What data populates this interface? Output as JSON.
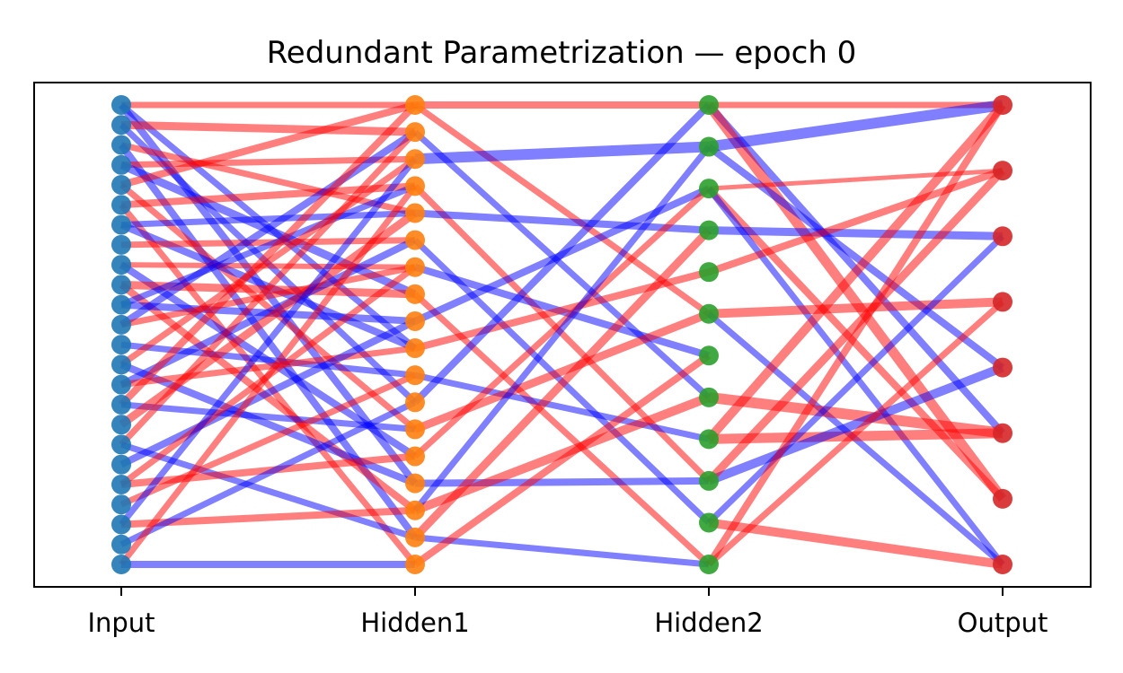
{
  "title": "Redundant Parametrization — epoch 0",
  "layers": [
    {
      "label": "Input",
      "nodes": 24,
      "color": "#1f77b4"
    },
    {
      "label": "Hidden1",
      "nodes": 18,
      "color": "#ff7f0e"
    },
    {
      "label": "Hidden2",
      "nodes": 12,
      "color": "#2ca02c"
    },
    {
      "label": "Output",
      "nodes": 8,
      "color": "#d62728"
    }
  ],
  "weight_colors": {
    "positive": "#ff0000",
    "negative": "#0000ff"
  },
  "edges": [
    {
      "from": [
        0,
        0
      ],
      "to": [
        1,
        0
      ],
      "sign": "pos",
      "w": 0.5
    },
    {
      "from": [
        0,
        0
      ],
      "to": [
        1,
        9
      ],
      "sign": "neg",
      "w": 0.5
    },
    {
      "from": [
        0,
        0
      ],
      "to": [
        1,
        14
      ],
      "sign": "neg",
      "w": 0.6
    },
    {
      "from": [
        0,
        1
      ],
      "to": [
        1,
        1
      ],
      "sign": "pos",
      "w": 0.7
    },
    {
      "from": [
        0,
        1
      ],
      "to": [
        1,
        11
      ],
      "sign": "neg",
      "w": 0.5
    },
    {
      "from": [
        0,
        2
      ],
      "to": [
        1,
        4
      ],
      "sign": "pos",
      "w": 0.5
    },
    {
      "from": [
        0,
        2
      ],
      "to": [
        1,
        16
      ],
      "sign": "neg",
      "w": 0.6
    },
    {
      "from": [
        0,
        3
      ],
      "to": [
        1,
        2
      ],
      "sign": "pos",
      "w": 0.5
    },
    {
      "from": [
        0,
        3
      ],
      "to": [
        1,
        7
      ],
      "sign": "neg",
      "w": 0.7
    },
    {
      "from": [
        0,
        4
      ],
      "to": [
        1,
        0
      ],
      "sign": "pos",
      "w": 0.6
    },
    {
      "from": [
        0,
        4
      ],
      "to": [
        1,
        12
      ],
      "sign": "pos",
      "w": 0.5
    },
    {
      "from": [
        0,
        5
      ],
      "to": [
        1,
        3
      ],
      "sign": "pos",
      "w": 0.6
    },
    {
      "from": [
        0,
        5
      ],
      "to": [
        1,
        17
      ],
      "sign": "pos",
      "w": 0.5
    },
    {
      "from": [
        0,
        6
      ],
      "to": [
        1,
        4
      ],
      "sign": "neg",
      "w": 0.5
    },
    {
      "from": [
        0,
        6
      ],
      "to": [
        1,
        9
      ],
      "sign": "neg",
      "w": 0.6
    },
    {
      "from": [
        0,
        7
      ],
      "to": [
        1,
        5
      ],
      "sign": "pos",
      "w": 0.5
    },
    {
      "from": [
        0,
        8
      ],
      "to": [
        1,
        6
      ],
      "sign": "pos",
      "w": 0.4
    },
    {
      "from": [
        0,
        8
      ],
      "to": [
        1,
        13
      ],
      "sign": "neg",
      "w": 0.6
    },
    {
      "from": [
        0,
        9
      ],
      "to": [
        1,
        7
      ],
      "sign": "pos",
      "w": 0.7
    },
    {
      "from": [
        0,
        9
      ],
      "to": [
        1,
        15
      ],
      "sign": "pos",
      "w": 0.6
    },
    {
      "from": [
        0,
        10
      ],
      "to": [
        1,
        3
      ],
      "sign": "neg",
      "w": 0.5
    },
    {
      "from": [
        0,
        10
      ],
      "to": [
        1,
        8
      ],
      "sign": "neg",
      "w": 0.6
    },
    {
      "from": [
        0,
        11
      ],
      "to": [
        1,
        1
      ],
      "sign": "neg",
      "w": 0.6
    },
    {
      "from": [
        0,
        11
      ],
      "to": [
        1,
        6
      ],
      "sign": "pos",
      "w": 0.5
    },
    {
      "from": [
        0,
        12
      ],
      "to": [
        1,
        10
      ],
      "sign": "neg",
      "w": 0.5
    },
    {
      "from": [
        0,
        13
      ],
      "to": [
        1,
        2
      ],
      "sign": "pos",
      "w": 0.5
    },
    {
      "from": [
        0,
        13
      ],
      "to": [
        1,
        14
      ],
      "sign": "neg",
      "w": 0.6
    },
    {
      "from": [
        0,
        14
      ],
      "to": [
        1,
        5
      ],
      "sign": "neg",
      "w": 0.6
    },
    {
      "from": [
        0,
        14
      ],
      "to": [
        1,
        9
      ],
      "sign": "pos",
      "w": 0.5
    },
    {
      "from": [
        0,
        15
      ],
      "to": [
        1,
        0
      ],
      "sign": "pos",
      "w": 0.6
    },
    {
      "from": [
        0,
        15
      ],
      "to": [
        1,
        12
      ],
      "sign": "neg",
      "w": 0.5
    },
    {
      "from": [
        0,
        16
      ],
      "to": [
        1,
        4
      ],
      "sign": "pos",
      "w": 0.7
    },
    {
      "from": [
        0,
        17
      ],
      "to": [
        1,
        1
      ],
      "sign": "pos",
      "w": 0.5
    },
    {
      "from": [
        0,
        17
      ],
      "to": [
        1,
        16
      ],
      "sign": "neg",
      "w": 0.5
    },
    {
      "from": [
        0,
        18
      ],
      "to": [
        1,
        8
      ],
      "sign": "neg",
      "w": 0.6
    },
    {
      "from": [
        0,
        19
      ],
      "to": [
        1,
        6
      ],
      "sign": "pos",
      "w": 0.5
    },
    {
      "from": [
        0,
        19
      ],
      "to": [
        1,
        13
      ],
      "sign": "pos",
      "w": 0.6
    },
    {
      "from": [
        0,
        20
      ],
      "to": [
        1,
        10
      ],
      "sign": "pos",
      "w": 0.5
    },
    {
      "from": [
        0,
        21
      ],
      "to": [
        1,
        2
      ],
      "sign": "neg",
      "w": 0.5
    },
    {
      "from": [
        0,
        21
      ],
      "to": [
        1,
        15
      ],
      "sign": "pos",
      "w": 0.6
    },
    {
      "from": [
        0,
        22
      ],
      "to": [
        1,
        11
      ],
      "sign": "neg",
      "w": 0.5
    },
    {
      "from": [
        0,
        23
      ],
      "to": [
        1,
        17
      ],
      "sign": "neg",
      "w": 0.6
    },
    {
      "from": [
        0,
        23
      ],
      "to": [
        1,
        3
      ],
      "sign": "pos",
      "w": 0.5
    },
    {
      "from": [
        1,
        0
      ],
      "to": [
        2,
        0
      ],
      "sign": "pos",
      "w": 0.6
    },
    {
      "from": [
        1,
        0
      ],
      "to": [
        2,
        5
      ],
      "sign": "pos",
      "w": 0.5
    },
    {
      "from": [
        1,
        1
      ],
      "to": [
        2,
        7
      ],
      "sign": "neg",
      "w": 0.5
    },
    {
      "from": [
        1,
        2
      ],
      "to": [
        2,
        1
      ],
      "sign": "neg",
      "w": 1.0
    },
    {
      "from": [
        1,
        3
      ],
      "to": [
        2,
        9
      ],
      "sign": "pos",
      "w": 0.5
    },
    {
      "from": [
        1,
        4
      ],
      "to": [
        2,
        3
      ],
      "sign": "neg",
      "w": 0.6
    },
    {
      "from": [
        1,
        5
      ],
      "to": [
        2,
        10
      ],
      "sign": "neg",
      "w": 0.5
    },
    {
      "from": [
        1,
        6
      ],
      "to": [
        2,
        6
      ],
      "sign": "neg",
      "w": 0.6
    },
    {
      "from": [
        1,
        7
      ],
      "to": [
        2,
        11
      ],
      "sign": "pos",
      "w": 0.5
    },
    {
      "from": [
        1,
        8
      ],
      "to": [
        2,
        2
      ],
      "sign": "neg",
      "w": 0.6
    },
    {
      "from": [
        1,
        9
      ],
      "to": [
        2,
        4
      ],
      "sign": "pos",
      "w": 0.6
    },
    {
      "from": [
        1,
        10
      ],
      "to": [
        2,
        8
      ],
      "sign": "neg",
      "w": 0.5
    },
    {
      "from": [
        1,
        11
      ],
      "to": [
        2,
        0
      ],
      "sign": "neg",
      "w": 0.6
    },
    {
      "from": [
        1,
        12
      ],
      "to": [
        2,
        5
      ],
      "sign": "pos",
      "w": 0.7
    },
    {
      "from": [
        1,
        13
      ],
      "to": [
        2,
        2
      ],
      "sign": "pos",
      "w": 0.5
    },
    {
      "from": [
        1,
        14
      ],
      "to": [
        2,
        9
      ],
      "sign": "neg",
      "w": 0.6
    },
    {
      "from": [
        1,
        15
      ],
      "to": [
        2,
        7
      ],
      "sign": "pos",
      "w": 0.8
    },
    {
      "from": [
        1,
        15
      ],
      "to": [
        2,
        1
      ],
      "sign": "neg",
      "w": 0.5
    },
    {
      "from": [
        1,
        16
      ],
      "to": [
        2,
        3
      ],
      "sign": "pos",
      "w": 0.7
    },
    {
      "from": [
        1,
        16
      ],
      "to": [
        2,
        11
      ],
      "sign": "neg",
      "w": 0.5
    },
    {
      "from": [
        1,
        17
      ],
      "to": [
        2,
        6
      ],
      "sign": "pos",
      "w": 0.6
    },
    {
      "from": [
        2,
        0
      ],
      "to": [
        3,
        0
      ],
      "sign": "pos",
      "w": 0.5
    },
    {
      "from": [
        2,
        0
      ],
      "to": [
        3,
        5
      ],
      "sign": "neg",
      "w": 0.6
    },
    {
      "from": [
        2,
        0
      ],
      "to": [
        3,
        6
      ],
      "sign": "pos",
      "w": 0.9
    },
    {
      "from": [
        2,
        1
      ],
      "to": [
        3,
        0
      ],
      "sign": "neg",
      "w": 1.0
    },
    {
      "from": [
        2,
        1
      ],
      "to": [
        3,
        4
      ],
      "sign": "neg",
      "w": 0.6
    },
    {
      "from": [
        2,
        2
      ],
      "to": [
        3,
        1
      ],
      "sign": "pos",
      "w": 0.3
    },
    {
      "from": [
        2,
        2
      ],
      "to": [
        3,
        6
      ],
      "sign": "pos",
      "w": 0.6
    },
    {
      "from": [
        2,
        2
      ],
      "to": [
        3,
        7
      ],
      "sign": "neg",
      "w": 0.5
    },
    {
      "from": [
        2,
        3
      ],
      "to": [
        3,
        2
      ],
      "sign": "neg",
      "w": 0.7
    },
    {
      "from": [
        2,
        4
      ],
      "to": [
        3,
        1
      ],
      "sign": "pos",
      "w": 0.6
    },
    {
      "from": [
        2,
        5
      ],
      "to": [
        3,
        3
      ],
      "sign": "pos",
      "w": 0.8
    },
    {
      "from": [
        2,
        5
      ],
      "to": [
        3,
        7
      ],
      "sign": "neg",
      "w": 0.5
    },
    {
      "from": [
        2,
        7
      ],
      "to": [
        3,
        5
      ],
      "sign": "pos",
      "w": 1.0
    },
    {
      "from": [
        2,
        8
      ],
      "to": [
        3,
        5
      ],
      "sign": "pos",
      "w": 0.9
    },
    {
      "from": [
        2,
        8
      ],
      "to": [
        3,
        0
      ],
      "sign": "pos",
      "w": 0.8
    },
    {
      "from": [
        2,
        9
      ],
      "to": [
        3,
        4
      ],
      "sign": "neg",
      "w": 0.8
    },
    {
      "from": [
        2,
        9
      ],
      "to": [
        3,
        1
      ],
      "sign": "pos",
      "w": 0.7
    },
    {
      "from": [
        2,
        10
      ],
      "to": [
        3,
        2
      ],
      "sign": "neg",
      "w": 0.5
    },
    {
      "from": [
        2,
        10
      ],
      "to": [
        3,
        7
      ],
      "sign": "pos",
      "w": 0.8
    },
    {
      "from": [
        2,
        11
      ],
      "to": [
        3,
        3
      ],
      "sign": "pos",
      "w": 0.5
    },
    {
      "from": [
        2,
        11
      ],
      "to": [
        3,
        0
      ],
      "sign": "pos",
      "w": 0.6
    }
  ]
}
